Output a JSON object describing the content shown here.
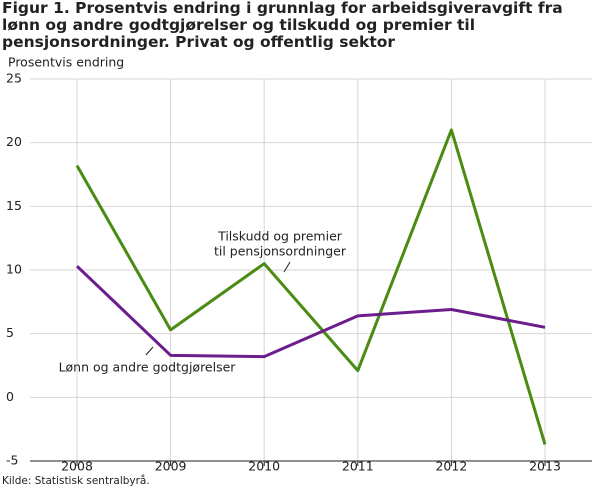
{
  "chart_data": {
    "type": "line",
    "title": "Figur 1. Prosentvis endring i grunnlag for arbeidsgiveravgift fra lønn og andre godtgjørelser og tilskudd og premier til pensjonsordninger. Privat og offentlig sektor",
    "y_label": "Prosentvis endring",
    "source": "Kilde: Statistisk sentralbyrå.",
    "categories": [
      "2008",
      "2009",
      "2010",
      "2011",
      "2012",
      "2013"
    ],
    "series": [
      {
        "color": "#4a8c12",
        "values": [
          18.2,
          5.3,
          10.5,
          2.1,
          21.0,
          -3.7
        ]
      },
      {
        "color": "#6b1d8c",
        "values": [
          10.3,
          3.3,
          3.2,
          6.4,
          6.9,
          5.5
        ]
      }
    ],
    "annotations": [
      [
        "Tilskudd og premier",
        "til pensjonsordninger"
      ],
      [
        "Lønn og andre godtgjørelser"
      ]
    ],
    "ylim": [
      -5,
      25
    ],
    "yticks": [
      -5,
      0,
      5,
      10,
      15,
      20,
      25
    ],
    "grid": true
  }
}
